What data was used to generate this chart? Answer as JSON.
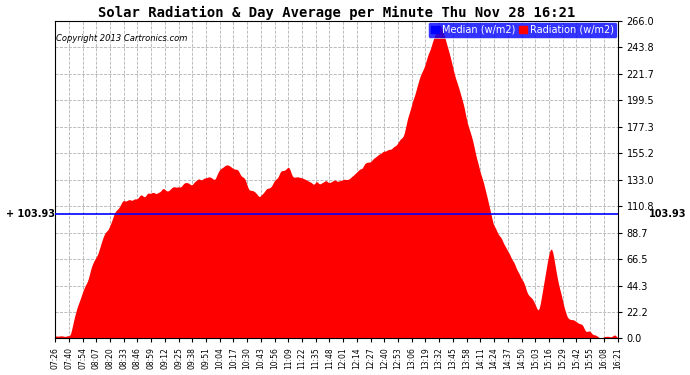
{
  "title": "Solar Radiation & Day Average per Minute Thu Nov 28 16:21",
  "copyright": "Copyright 2013 Cartronics.com",
  "median_value": 103.93,
  "median_label": "103.93",
  "ymin": 0.0,
  "ymax": 266.0,
  "yticks": [
    0.0,
    22.2,
    44.3,
    66.5,
    88.7,
    110.8,
    133.0,
    155.2,
    177.3,
    199.5,
    221.7,
    243.8,
    266.0
  ],
  "legend_median_label": "Median (w/m2)",
  "legend_radiation_label": "Radiation (w/m2)",
  "bg_color": "#ffffff",
  "fill_color": "#ff0000",
  "median_line_color": "#0000ff",
  "grid_color": "#aaaaaa",
  "title_color": "#000000",
  "xtick_labels": [
    "07:26",
    "07:40",
    "07:54",
    "08:07",
    "08:20",
    "08:33",
    "08:46",
    "08:59",
    "09:12",
    "09:25",
    "09:38",
    "09:51",
    "10:04",
    "10:17",
    "10:30",
    "10:43",
    "10:56",
    "11:09",
    "11:22",
    "11:35",
    "11:48",
    "12:01",
    "12:14",
    "12:27",
    "12:40",
    "12:53",
    "13:06",
    "13:19",
    "13:32",
    "13:45",
    "13:58",
    "14:11",
    "14:24",
    "14:37",
    "14:50",
    "15:03",
    "15:16",
    "15:29",
    "15:42",
    "15:55",
    "16:08",
    "16:21"
  ]
}
